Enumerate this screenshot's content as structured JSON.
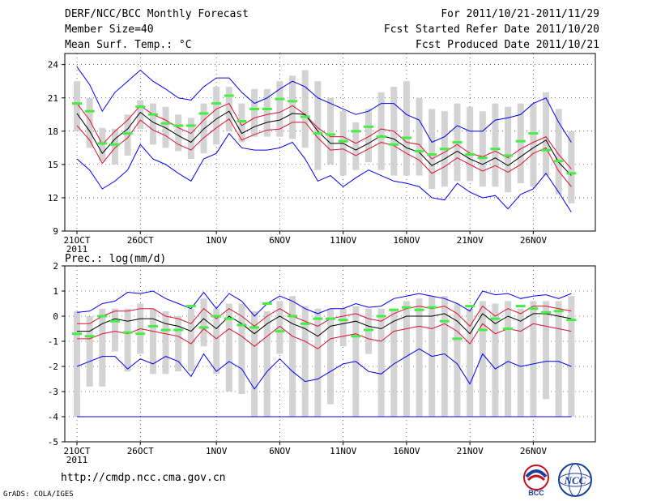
{
  "header": {
    "title": "DERF/NCC/BCC Monthly Forecast",
    "member": "Member Size=40",
    "variable": "Mean Surf. Temp.: °C",
    "period": "For 2011/10/21-2011/11/29",
    "started": "Fcst Started Refer Date 2011/10/20",
    "produced": "Fcst Produced Date 2011/10/21"
  },
  "footer": {
    "url": "http://cmdp.ncc.cma.gov.cn",
    "grads": "GrADS: COLA/IGES",
    "logo_left": "BCC",
    "logo_right": "NCC"
  },
  "colors": {
    "blue": "#0000ee",
    "red": "#dd1030",
    "green": "#44ee44",
    "box": "#d3d3d3",
    "black": "#000000"
  },
  "chart_data": [
    {
      "type": "box-line",
      "title": "Mean Surf. Temp.: °C",
      "xlabel": "",
      "ylabel": "",
      "x_ticks": [
        "21OCT",
        "26OCT",
        "1NOV",
        "6NOV",
        "11NOV",
        "16NOV",
        "21NOV",
        "26NOV"
      ],
      "x_tick_days": [
        1,
        6,
        12,
        17,
        22,
        27,
        32,
        37
      ],
      "x_sub_label": "2011",
      "ylim": [
        9,
        25
      ],
      "y_ticks": [
        9,
        12,
        15,
        18,
        21,
        24
      ],
      "days": 40,
      "max": [
        23.8,
        22.2,
        19.8,
        21.5,
        22.5,
        23.5,
        22.5,
        21.8,
        21.0,
        20.8,
        22.0,
        22.8,
        22.8,
        21.5,
        20.5,
        21.0,
        21.8,
        22.5,
        22.0,
        21.0,
        20.5,
        20.0,
        19.5,
        19.8,
        20.5,
        20.5,
        19.5,
        19.0,
        17.0,
        17.5,
        18.5,
        18.0,
        18.0,
        19.0,
        19.2,
        19.5,
        20.5,
        21.0,
        18.8,
        17.0
      ],
      "p75": [
        20.5,
        19.0,
        16.8,
        18.0,
        19.0,
        20.3,
        19.5,
        19.0,
        18.3,
        17.8,
        19.0,
        20.0,
        20.5,
        18.5,
        19.2,
        19.5,
        19.7,
        20.3,
        19.5,
        18.3,
        17.5,
        17.5,
        16.9,
        17.5,
        18.2,
        18.0,
        17.0,
        16.8,
        15.5,
        16.1,
        16.8,
        16.0,
        15.7,
        16.2,
        15.6,
        16.4,
        17.0,
        17.5,
        15.9,
        14.6
      ],
      "mean": [
        19.6,
        18.0,
        16.0,
        17.3,
        18.2,
        19.7,
        18.8,
        18.3,
        17.6,
        17.0,
        18.2,
        19.1,
        19.8,
        17.8,
        18.4,
        18.8,
        19.0,
        19.6,
        19.5,
        18.0,
        16.9,
        16.9,
        16.3,
        16.9,
        17.6,
        17.3,
        16.5,
        16.1,
        14.9,
        15.5,
        16.2,
        15.5,
        15.0,
        15.6,
        14.9,
        15.7,
        16.5,
        17.2,
        15.2,
        14.0
      ],
      "p25": [
        18.5,
        17.2,
        15.1,
        16.5,
        17.4,
        19.0,
        18.1,
        17.6,
        16.8,
        16.3,
        17.4,
        18.3,
        19.1,
        17.2,
        17.7,
        18.1,
        18.2,
        18.8,
        18.8,
        17.4,
        16.3,
        16.4,
        15.8,
        16.4,
        17.0,
        16.7,
        16.0,
        15.4,
        14.2,
        14.8,
        15.6,
        15.0,
        14.4,
        14.9,
        14.3,
        15.0,
        16.0,
        16.5,
        14.4,
        13.0
      ],
      "min": [
        15.5,
        14.5,
        12.8,
        13.5,
        14.5,
        16.8,
        15.5,
        15.0,
        14.2,
        13.5,
        15.5,
        16.0,
        17.8,
        16.5,
        16.3,
        16.3,
        16.5,
        17.0,
        15.5,
        13.5,
        14.0,
        13.0,
        13.8,
        14.5,
        14.0,
        13.5,
        13.3,
        13.0,
        12.0,
        11.8,
        13.3,
        12.5,
        12.0,
        12.2,
        11.0,
        12.3,
        12.8,
        14.2,
        12.5,
        10.7
      ],
      "box_hi": [
        22.5,
        21.0,
        18.3,
        18.2,
        19.5,
        20.8,
        20.5,
        20.2,
        19.5,
        19.2,
        20.5,
        22.0,
        22.0,
        20.5,
        21.8,
        21.8,
        22.5,
        23.0,
        23.5,
        22.5,
        21.0,
        19.8,
        18.8,
        20.0,
        21.5,
        22.0,
        22.5,
        21.0,
        20.0,
        19.8,
        20.5,
        20.2,
        19.8,
        20.5,
        20.2,
        20.5,
        20.5,
        21.5,
        20.0,
        18.0
      ],
      "box_lo": [
        18.0,
        16.5,
        15.3,
        15.0,
        15.8,
        18.2,
        16.8,
        16.5,
        16.2,
        15.5,
        16.0,
        16.8,
        18.0,
        17.0,
        17.5,
        17.5,
        17.5,
        17.3,
        16.5,
        14.5,
        15.0,
        14.0,
        14.5,
        15.2,
        14.5,
        14.0,
        14.0,
        14.0,
        12.8,
        13.0,
        13.5,
        13.5,
        13.0,
        13.0,
        12.5,
        13.3,
        13.0,
        14.0,
        12.3,
        11.5
      ],
      "obs": [
        20.5,
        19.8,
        16.9,
        16.8,
        17.8,
        20.2,
        19.5,
        18.7,
        18.5,
        18.5,
        19.6,
        20.5,
        21.2,
        18.9,
        20.0,
        20.0,
        20.9,
        20.7,
        19.3,
        17.8,
        17.7,
        17.1,
        18.0,
        18.4,
        17.5,
        16.8,
        17.4,
        16.2,
        15.9,
        16.4,
        17.0,
        15.9,
        15.6,
        16.4,
        15.8,
        17.1,
        17.8,
        16.3,
        15.3,
        14.2
      ]
    },
    {
      "type": "box-line",
      "title": "Prec.: log(mm/d)",
      "xlabel": "",
      "ylabel": "",
      "x_ticks": [
        "21OCT",
        "26OCT",
        "1NOV",
        "6NOV",
        "11NOV",
        "16NOV",
        "21NOV",
        "26NOV"
      ],
      "x_tick_days": [
        1,
        6,
        12,
        17,
        22,
        27,
        32,
        37
      ],
      "x_sub_label": "2011",
      "ylim": [
        -5,
        2
      ],
      "y_ticks": [
        -5,
        -4,
        -3,
        -2,
        -1,
        0,
        1,
        2
      ],
      "days": 40,
      "max": [
        0.15,
        0.2,
        0.5,
        0.6,
        0.95,
        0.9,
        1.0,
        0.7,
        0.5,
        0.3,
        0.95,
        0.3,
        0.9,
        0.6,
        0.0,
        0.5,
        0.8,
        0.6,
        0.3,
        0.1,
        0.3,
        0.3,
        0.5,
        0.35,
        0.4,
        0.7,
        0.8,
        0.9,
        0.8,
        0.7,
        0.5,
        0.2,
        1.0,
        0.85,
        0.9,
        0.7,
        0.8,
        0.85,
        0.7,
        0.9
      ],
      "p75": [
        -0.3,
        -0.3,
        0.0,
        0.2,
        0.2,
        0.3,
        0.3,
        0.0,
        -0.1,
        -0.3,
        0.3,
        -0.1,
        0.3,
        0.0,
        -0.4,
        0.0,
        0.3,
        0.0,
        -0.2,
        -0.4,
        -0.1,
        0.0,
        0.1,
        -0.1,
        -0.2,
        0.1,
        0.3,
        0.4,
        0.3,
        0.4,
        0.1,
        -0.4,
        0.4,
        0.0,
        0.3,
        0.1,
        0.4,
        0.4,
        0.3,
        0.2
      ],
      "mean": [
        -0.6,
        -0.6,
        -0.3,
        -0.1,
        -0.2,
        -0.1,
        -0.1,
        -0.3,
        -0.4,
        -0.6,
        -0.1,
        -0.5,
        0.0,
        -0.3,
        -0.7,
        -0.3,
        0.0,
        -0.3,
        -0.5,
        -0.8,
        -0.4,
        -0.3,
        -0.2,
        -0.4,
        -0.5,
        -0.2,
        0.0,
        0.0,
        0.0,
        0.1,
        -0.2,
        -0.7,
        0.1,
        -0.3,
        0.0,
        -0.2,
        0.1,
        0.1,
        0.0,
        -0.1
      ],
      "p25": [
        -0.9,
        -0.9,
        -0.7,
        -0.6,
        -0.7,
        -0.5,
        -0.6,
        -0.7,
        -0.8,
        -1.1,
        -0.5,
        -0.9,
        -0.5,
        -0.8,
        -1.2,
        -0.8,
        -0.4,
        -0.8,
        -1.0,
        -1.3,
        -0.9,
        -0.8,
        -0.7,
        -0.9,
        -1.0,
        -0.6,
        -0.5,
        -0.4,
        -0.5,
        -0.3,
        -0.6,
        -1.1,
        -0.3,
        -0.7,
        -0.5,
        -0.6,
        -0.3,
        -0.4,
        -0.5,
        -0.6
      ],
      "min": [
        -2.0,
        -1.8,
        -1.6,
        -1.6,
        -2.1,
        -1.7,
        -1.9,
        -1.6,
        -1.8,
        -2.4,
        -1.5,
        -2.2,
        -1.8,
        -2.1,
        -2.9,
        -2.2,
        -1.7,
        -2.2,
        -2.6,
        -2.5,
        -2.2,
        -1.9,
        -1.8,
        -2.2,
        -2.3,
        -1.9,
        -1.6,
        -1.3,
        -1.6,
        -1.5,
        -1.9,
        -2.7,
        -1.5,
        -2.1,
        -1.8,
        -2.0,
        -1.9,
        -1.8,
        -1.8,
        -2.0
      ],
      "floor": -4.0,
      "box_hi": [
        0.2,
        0.0,
        0.3,
        0.3,
        0.3,
        0.5,
        0.3,
        0.2,
        0.0,
        0.3,
        0.7,
        0.3,
        0.5,
        0.5,
        0.2,
        0.2,
        0.6,
        0.8,
        0.4,
        0.3,
        0.3,
        0.3,
        0.4,
        0.3,
        0.3,
        0.3,
        0.6,
        0.7,
        0.8,
        0.8,
        0.5,
        0.3,
        0.6,
        0.5,
        0.6,
        0.3,
        0.6,
        0.6,
        0.6,
        0.8
      ],
      "box_lo": [
        -4.0,
        -2.8,
        -2.8,
        -1.4,
        -2.2,
        -1.5,
        -2.3,
        -2.3,
        -2.2,
        -2.2,
        -1.2,
        -2.3,
        -3.0,
        -3.1,
        -4.0,
        -4.0,
        -1.5,
        -4.0,
        -4.0,
        -4.0,
        -3.5,
        -1.2,
        -4.0,
        -1.5,
        -4.0,
        -4.0,
        -4.0,
        -4.0,
        -4.0,
        -4.0,
        -4.0,
        -4.0,
        -4.0,
        -4.0,
        -4.0,
        -4.0,
        -4.0,
        -3.3,
        -4.0,
        -4.0
      ],
      "obs": [
        -0.7,
        -0.8,
        0.0,
        -0.2,
        -0.65,
        -0.7,
        -0.4,
        -0.55,
        -0.55,
        0.4,
        -0.45,
        0.0,
        -0.1,
        -0.35,
        -0.45,
        0.5,
        -0.6,
        0.0,
        -0.3,
        -0.1,
        -0.1,
        -0.15,
        -0.8,
        -0.55,
        0.0,
        0.25,
        0.35,
        0.25,
        0.35,
        -0.2,
        -0.9,
        0.4,
        -0.55,
        -0.1,
        -0.5,
        0.4,
        0.3,
        0.15,
        0.2,
        -0.15
      ]
    }
  ]
}
